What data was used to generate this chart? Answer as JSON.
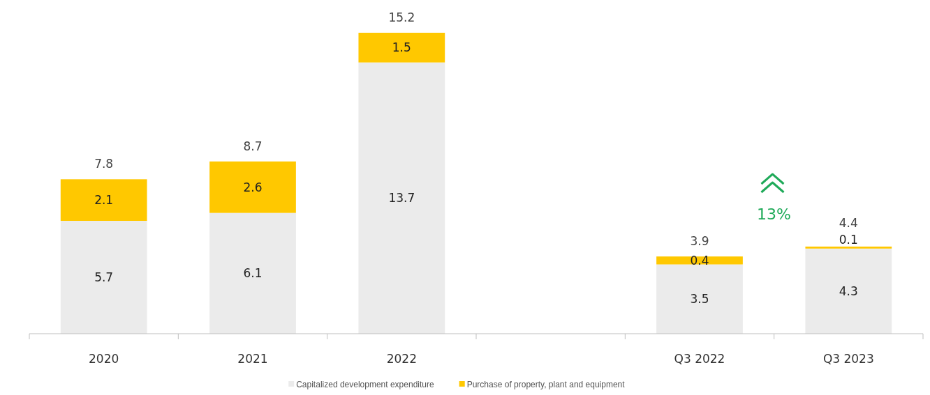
{
  "chart_data": {
    "type": "bar",
    "stacked": true,
    "categories": [
      "2020",
      "2021",
      "2022",
      null,
      "Q3 2022",
      "Q3 2023"
    ],
    "series": [
      {
        "name": "Capitalized development expenditure",
        "color": "#ebebeb",
        "values": [
          5.7,
          6.1,
          13.7,
          null,
          3.5,
          4.3
        ]
      },
      {
        "name": "Purchase of property, plant and equipment",
        "color": "#ffc800",
        "values": [
          2.1,
          2.6,
          1.5,
          null,
          0.4,
          0.1
        ]
      }
    ],
    "totals": [
      "7.8",
      "8.7",
      "15.2",
      null,
      "3.9",
      "4.4"
    ],
    "data_labels": true,
    "legend": "bottom",
    "annotations": [
      "13%"
    ]
  }
}
